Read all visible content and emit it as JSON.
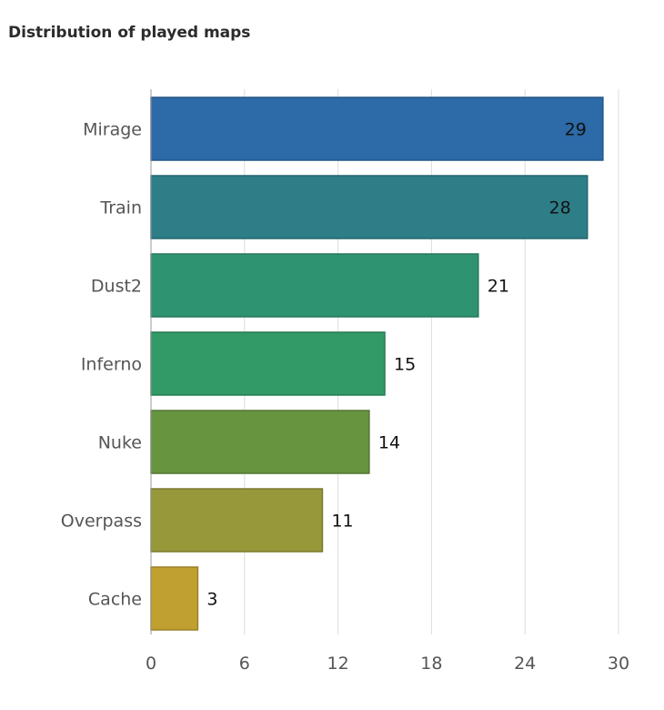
{
  "chart_data": {
    "type": "bar",
    "orientation": "horizontal",
    "title": "Distribution of played maps",
    "xlabel": "",
    "ylabel": "",
    "categories": [
      "Mirage",
      "Train",
      "Dust2",
      "Inferno",
      "Nuke",
      "Overpass",
      "Cache"
    ],
    "values": [
      29,
      28,
      21,
      15,
      14,
      11,
      3
    ],
    "colors": [
      "#2c6aa8",
      "#2e7e88",
      "#2e9370",
      "#319a66",
      "#66943f",
      "#96983a",
      "#c0a030"
    ],
    "xlim": [
      0,
      30
    ],
    "xticks": [
      0,
      6,
      12,
      18,
      24,
      30
    ],
    "grid": true,
    "legend": "none",
    "value_labels": true
  }
}
